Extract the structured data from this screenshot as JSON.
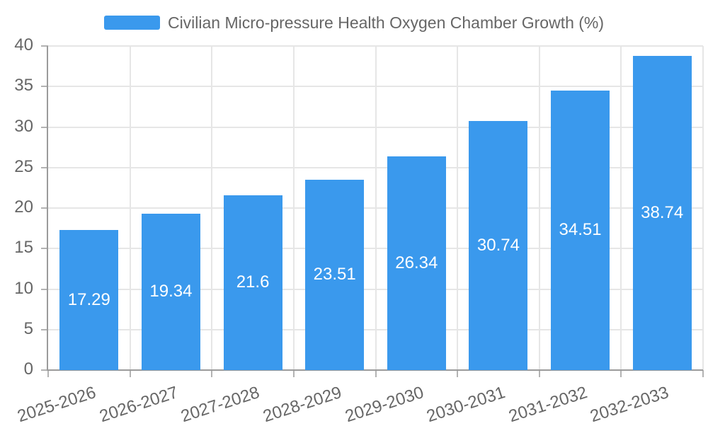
{
  "legend": {
    "label": "Civilian Micro-pressure Health Oxygen Chamber Growth (%)"
  },
  "chart_data": {
    "type": "bar",
    "series_name": "Civilian Micro-pressure Health Oxygen Chamber Growth (%)",
    "categories": [
      "2025-2026",
      "2026-2027",
      "2027-2028",
      "2028-2029",
      "2029-2030",
      "2030-2031",
      "2031-2032",
      "2032-2033"
    ],
    "values": [
      17.29,
      19.34,
      21.6,
      23.51,
      26.34,
      30.74,
      34.51,
      38.74
    ],
    "value_labels": [
      "17.29",
      "19.34",
      "21.6",
      "23.51",
      "26.34",
      "30.74",
      "34.51",
      "38.74"
    ],
    "ylim": [
      0,
      40
    ],
    "yticks": [
      0,
      5,
      10,
      15,
      20,
      25,
      30,
      35,
      40
    ],
    "grid": true,
    "legend_position": "top-center",
    "value_label_position": "inside-center",
    "xtick_rotation_deg": -18,
    "colors": {
      "bar": "#3a99ed",
      "value_label": "#ffffff",
      "axis_text": "#666666",
      "legend_text": "#666666",
      "grid_line": "#e6e6e6",
      "axis_line": "#9b9b9b",
      "tick_line": "#b3b3b3",
      "background": "#ffffff"
    }
  }
}
